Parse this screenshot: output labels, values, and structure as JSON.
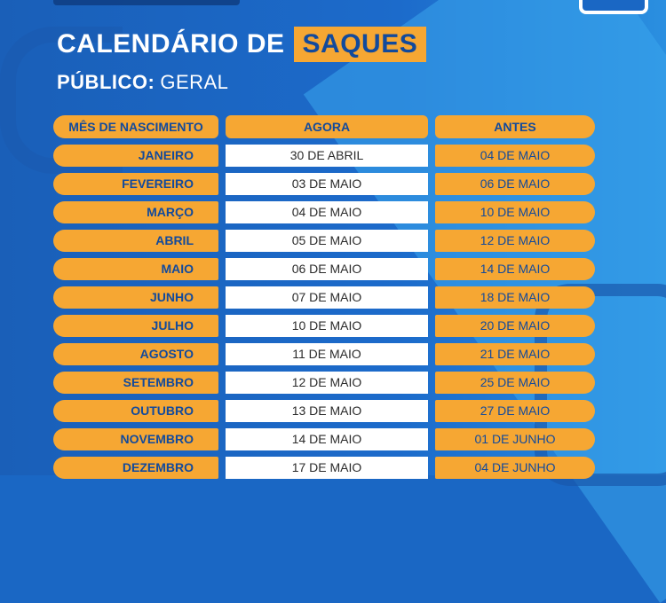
{
  "title": {
    "part1": "CALENDÁRIO DE",
    "highlight": "SAQUES"
  },
  "subtitle": {
    "label": "PÚBLICO:",
    "value": "GERAL"
  },
  "headers": {
    "month": "MÊS DE NASCIMENTO",
    "agora": "AGORA",
    "antes": "ANTES"
  },
  "rows": [
    {
      "month": "JANEIRO",
      "agora": "30 DE ABRIL",
      "antes": "04 DE MAIO"
    },
    {
      "month": "FEVEREIRO",
      "agora": "03 DE MAIO",
      "antes": "06 DE MAIO"
    },
    {
      "month": "MARÇO",
      "agora": "04 DE MAIO",
      "antes": "10 DE MAIO"
    },
    {
      "month": "ABRIL",
      "agora": "05 DE MAIO",
      "antes": "12 DE MAIO"
    },
    {
      "month": "MAIO",
      "agora": "06 DE MAIO",
      "antes": "14 DE MAIO"
    },
    {
      "month": "JUNHO",
      "agora": "07 DE MAIO",
      "antes": "18 DE MAIO"
    },
    {
      "month": "JULHO",
      "agora": "10 DE MAIO",
      "antes": "20 DE MAIO"
    },
    {
      "month": "AGOSTO",
      "agora": "11 DE MAIO",
      "antes": "21 DE MAIO"
    },
    {
      "month": "SETEMBRO",
      "agora": "12 DE MAIO",
      "antes": "25 DE MAIO"
    },
    {
      "month": "OUTUBRO",
      "agora": "13 DE MAIO",
      "antes": "27 DE MAIO"
    },
    {
      "month": "NOVEMBRO",
      "agora": "14 DE MAIO",
      "antes": "01 DE JUNHO"
    },
    {
      "month": "DEZEMBRO",
      "agora": "17 DE MAIO",
      "antes": "04 DE JUNHO"
    }
  ],
  "colors": {
    "background": "#1a67c4",
    "accent": "#f6a733",
    "text_dark": "#124a9c",
    "cell_white": "#ffffff"
  }
}
